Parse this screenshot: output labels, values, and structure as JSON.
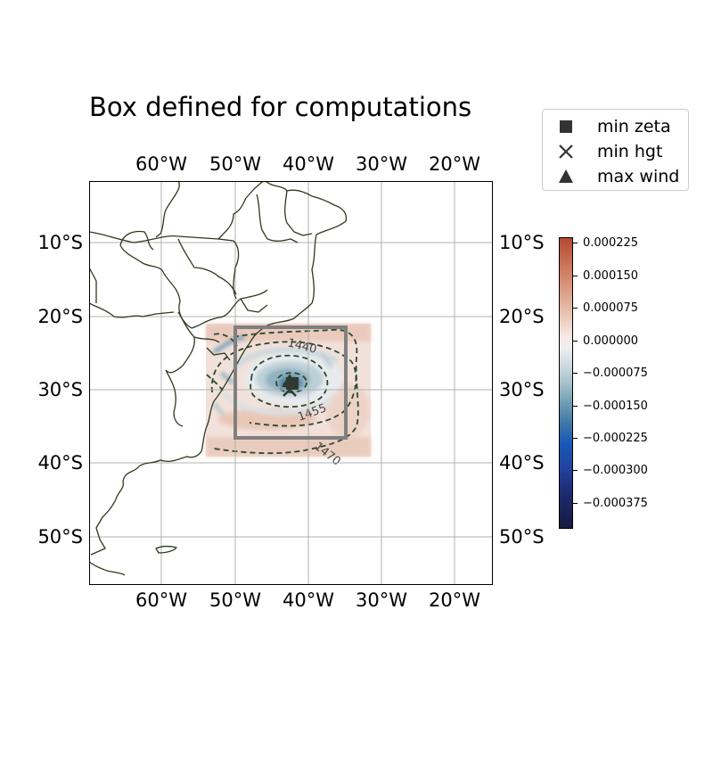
{
  "title": "Box defined for computations",
  "map": {
    "top_lon_labels": [
      "60°W",
      "50°W",
      "40°W",
      "30°W",
      "20°W"
    ],
    "bottom_lon_labels": [
      "60°W",
      "50°W",
      "40°W",
      "30°W",
      "20°W"
    ],
    "left_lat_labels": [
      "10°S",
      "20°S",
      "30°S",
      "40°S",
      "50°S"
    ],
    "right_lat_labels": [
      "10°S",
      "20°S",
      "30°S",
      "40°S",
      "50°S"
    ],
    "extent": {
      "lon_min": 70,
      "lon_max": 15,
      "lat_min": 2,
      "lat_max": 57,
      "hemisphere": "S/W"
    },
    "computation_box": {
      "lon_west": 50,
      "lon_east": 35,
      "lat_north": 21.5,
      "lat_south": 36.5
    },
    "field_extent": {
      "lon_west": 54,
      "lon_east": 32,
      "lat_north": 21,
      "lat_south": 39
    },
    "contour_labels": [
      "1440",
      "1455",
      "1470",
      "1455"
    ],
    "colors": {
      "coastline": "#2d3a1e",
      "grid": "#b0b0b0",
      "box": "#808080",
      "contour": "#2a4a30",
      "marker": "#333333"
    }
  },
  "legend": {
    "items": [
      {
        "label": "min zeta",
        "marker": "square"
      },
      {
        "label": "min hgt",
        "marker": "x-cross"
      },
      {
        "label": "max wind",
        "marker": "triangle"
      }
    ]
  },
  "colorbar": {
    "tick_labels": [
      "0.000225",
      "0.000150",
      "0.000075",
      "0.000000",
      "−0.000075",
      "−0.000150",
      "−0.000225",
      "−0.000300",
      "−0.000375"
    ],
    "tick_values": [
      0.000225,
      0.00015,
      7.5e-05,
      0,
      -7.5e-05,
      -0.00015,
      -0.000225,
      -0.0003,
      -0.000375
    ],
    "colormap": "balance"
  }
}
